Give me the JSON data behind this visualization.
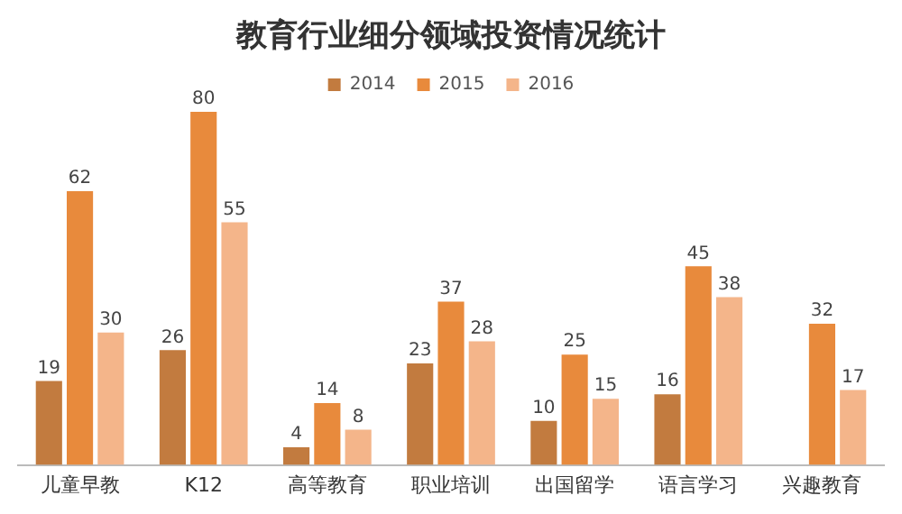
{
  "chart_data": {
    "type": "bar",
    "title": "教育行业细分领域投资情况统计",
    "categories": [
      "儿童早教",
      "K12",
      "高等教育",
      "职业培训",
      "出国留学",
      "语言学习",
      "兴趣教育"
    ],
    "series": [
      {
        "name": "2014",
        "color": "#c27b3f",
        "values": [
          19,
          26,
          4,
          23,
          10,
          16,
          null
        ]
      },
      {
        "name": "2015",
        "color": "#e88a3c",
        "values": [
          62,
          80,
          14,
          37,
          25,
          45,
          32
        ]
      },
      {
        "name": "2016",
        "color": "#f4b58a",
        "values": [
          30,
          55,
          8,
          28,
          15,
          38,
          17
        ]
      }
    ],
    "data_labels": true,
    "legend": "top",
    "grid": false
  }
}
